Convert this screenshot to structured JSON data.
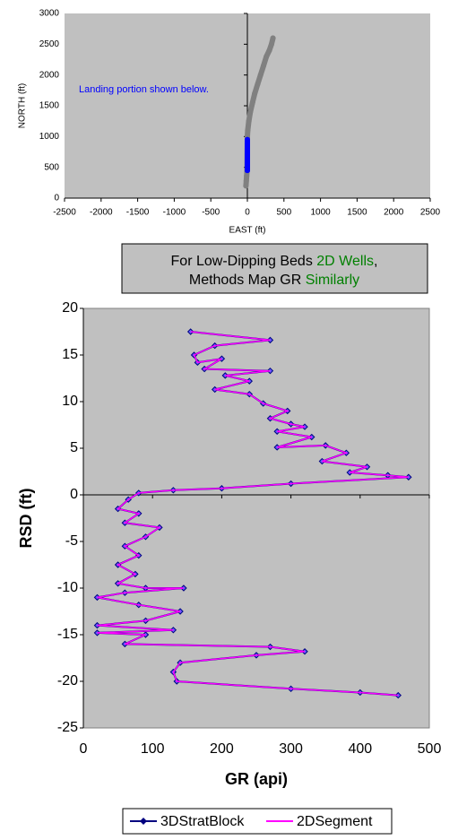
{
  "chart_data": [
    {
      "type": "scatter",
      "x_label": "EAST (ft)",
      "y_label": "NORTH (ft)",
      "annotation": "Landing portion shown below.",
      "xlim": [
        -2500,
        2500
      ],
      "xticks": [
        -2500,
        -2000,
        -1500,
        -1000,
        -500,
        0,
        500,
        1000,
        1500,
        2000,
        2500
      ],
      "ylim": [
        0,
        3000
      ],
      "yticks": [
        0,
        500,
        1000,
        1500,
        2000,
        2500,
        3000
      ],
      "series": [
        {
          "color": "#808080",
          "x": [
            -20,
            -15,
            -10,
            -5,
            0,
            5,
            20,
            40,
            70,
            100,
            140,
            180,
            220,
            260,
            300,
            330,
            350
          ],
          "values": [
            200,
            280,
            360,
            440,
            1000,
            1100,
            1250,
            1400,
            1550,
            1700,
            1850,
            2000,
            2150,
            2300,
            2400,
            2500,
            2600
          ]
        },
        {
          "color": "#0000ff",
          "x": [
            0,
            0,
            0,
            0,
            0,
            0
          ],
          "values": [
            450,
            550,
            650,
            750,
            850,
            950
          ]
        }
      ]
    },
    {
      "type": "scatter",
      "x_label": "GR (api)",
      "y_label": "RSD (ft)",
      "xlim": [
        0,
        500
      ],
      "xticks": [
        0,
        100,
        200,
        300,
        400,
        500
      ],
      "ylim": [
        -25,
        20
      ],
      "yticks": [
        -25,
        -20,
        -15,
        -10,
        -5,
        0,
        5,
        10,
        15,
        20
      ],
      "x": [
        155,
        270,
        190,
        160,
        165,
        200,
        175,
        270,
        205,
        240,
        190,
        240,
        260,
        295,
        270,
        300,
        320,
        280,
        330,
        280,
        350,
        380,
        345,
        410,
        385,
        440,
        470,
        300,
        200,
        130,
        80,
        65,
        50,
        80,
        60,
        110,
        90,
        60,
        80,
        50,
        75,
        50,
        90,
        145,
        60,
        20,
        80,
        140,
        90,
        20,
        130,
        20,
        90,
        60,
        270,
        320,
        250,
        140,
        130,
        135,
        300,
        400,
        455
      ],
      "series": [
        {
          "name": "3DStratBlock",
          "color": "#000080",
          "values": [
            17.5,
            16.6,
            16,
            15,
            14.2,
            14.6,
            13.5,
            13.3,
            12.8,
            12.2,
            11.3,
            10.8,
            9.8,
            9.0,
            8.2,
            7.6,
            7.3,
            6.8,
            6.2,
            5.1,
            5.3,
            4.5,
            3.6,
            3.0,
            2.4,
            2.1,
            1.9,
            1.2,
            0.7,
            0.5,
            0.2,
            -0.5,
            -1.5,
            -2,
            -3,
            -3.5,
            -4.5,
            -5.5,
            -6.5,
            -7.5,
            -8.5,
            -9.5,
            -10,
            -10,
            -10.5,
            -11,
            -11.8,
            -12.5,
            -13.5,
            -14,
            -14.5,
            -14.8,
            -15,
            -16,
            -16.3,
            -16.8,
            -17.2,
            -18,
            -19,
            -20,
            -20.8,
            -21.2,
            -21.5
          ]
        },
        {
          "name": "2DSegment",
          "color": "#ff00ff",
          "values": [
            17.5,
            16.6,
            16,
            15,
            14.2,
            14.6,
            13.5,
            13.3,
            12.8,
            12.2,
            11.3,
            10.8,
            9.8,
            9.0,
            8.2,
            7.6,
            7.3,
            6.8,
            6.2,
            5.1,
            5.3,
            4.5,
            3.6,
            3.0,
            2.4,
            2.1,
            1.9,
            1.2,
            0.7,
            0.5,
            0.2,
            -0.5,
            -1.5,
            -2,
            -3,
            -3.5,
            -4.5,
            -5.5,
            -6.5,
            -7.5,
            -8.5,
            -9.5,
            -10,
            -10,
            -10.5,
            -11,
            -11.8,
            -12.5,
            -13.5,
            -14,
            -14.5,
            -14.8,
            -15,
            -16,
            -16.3,
            -16.8,
            -17.2,
            -18,
            -19,
            -20,
            -20.8,
            -21.2,
            -21.5
          ]
        }
      ]
    }
  ],
  "callout": {
    "lines": [
      [
        {
          "text": "For Low-Dipping Beds ",
          "color": "#000000"
        },
        {
          "text": "2D Wells",
          "color": "#008000"
        },
        {
          "text": ",",
          "color": "#000000"
        }
      ],
      [
        {
          "text": "Methods Map GR ",
          "color": "#000000"
        },
        {
          "text": "Similarly",
          "color": "#008000"
        }
      ]
    ]
  }
}
